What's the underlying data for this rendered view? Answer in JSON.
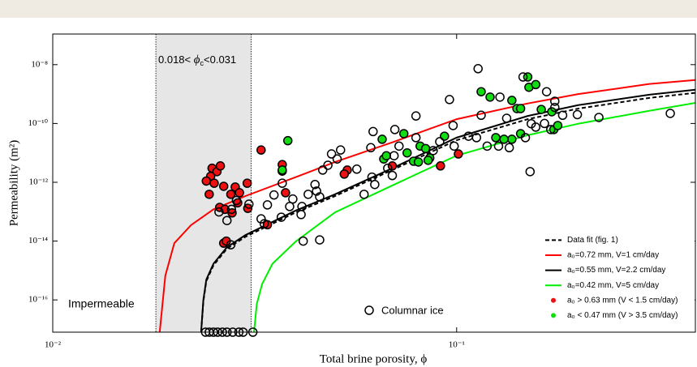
{
  "chart_data": {
    "type": "line",
    "xlabel": "Total brine porosity, ϕ",
    "ylabel": "Permeability (m²)",
    "xscale": "log",
    "yscale": "log",
    "xlim": [
      0.01,
      0.39
    ],
    "ylim": [
      8e-18,
      1.1e-07
    ],
    "xticks": [
      {
        "value": 0.01,
        "label": "10⁻²"
      },
      {
        "value": 0.1,
        "label": "10⁻¹"
      }
    ],
    "yticks": [
      {
        "value": 1e-08,
        "label": "10⁻⁸"
      },
      {
        "value": 1e-10,
        "label": "10⁻¹⁰"
      },
      {
        "value": 1e-12,
        "label": "10⁻¹²"
      },
      {
        "value": 1e-14,
        "label": "10⁻¹⁴"
      },
      {
        "value": 1e-16,
        "label": "10⁻¹⁶"
      }
    ],
    "shade": {
      "xlim": [
        0.018,
        0.031
      ],
      "color": "#e6e6e6"
    },
    "annotations": {
      "critical": [
        "0.018< ",
        "ϕ",
        "c",
        "<0.031"
      ],
      "impermeable": "Impermeable"
    },
    "legend_loc": "lower right",
    "series": [
      {
        "name": "Data fit (fig. 1)",
        "kind": "line",
        "color": "#000000",
        "dash": true,
        "x": [
          0.0233,
          0.0236,
          0.024,
          0.025,
          0.027,
          0.03,
          0.04,
          0.05,
          0.07,
          0.1,
          0.15,
          0.2,
          0.3,
          0.39
        ],
        "values": [
          8e-18,
          8.8e-17,
          4.3e-16,
          1.5e-15,
          5.5e-15,
          1.4e-14,
          9.5e-14,
          3.4e-13,
          2.8e-12,
          2.7e-11,
          1.4e-10,
          3.2e-10,
          7.4e-10,
          1.1e-09
        ]
      },
      {
        "name": "a₀=0.72 mm, V=1 cm/day",
        "kind": "line",
        "color": "#ff0000",
        "dash": false,
        "x": [
          0.0184,
          0.019,
          0.02,
          0.022,
          0.025,
          0.03,
          0.04,
          0.05,
          0.07,
          0.1,
          0.15,
          0.2,
          0.3,
          0.39
        ],
        "values": [
          8e-18,
          6.7e-16,
          8.5e-15,
          3.5e-14,
          1.2e-13,
          3.4e-13,
          1.5e-12,
          4.9e-12,
          2.4e-11,
          1.4e-10,
          4.8e-10,
          1e-09,
          2.2e-09,
          3e-09
        ]
      },
      {
        "name": "a₀=0.55 mm, V=2.2 cm/day",
        "kind": "line",
        "color": "#000000",
        "dash": false,
        "x": [
          0.0233,
          0.0236,
          0.024,
          0.025,
          0.027,
          0.03,
          0.04,
          0.05,
          0.07,
          0.1,
          0.15,
          0.2,
          0.3,
          0.39
        ],
        "values": [
          8e-18,
          1e-16,
          4.9e-16,
          1.7e-15,
          6.2e-15,
          1.6e-14,
          1.1e-13,
          3.9e-13,
          3.2e-12,
          3.3e-11,
          1.8e-10,
          4.2e-10,
          9.5e-10,
          1.4e-09
        ]
      },
      {
        "name": "a₀=0.42 mm, V=5 cm/day",
        "kind": "line",
        "color": "#00ee00",
        "dash": false,
        "x": [
          0.0315,
          0.032,
          0.033,
          0.035,
          0.04,
          0.05,
          0.07,
          0.1,
          0.15,
          0.2,
          0.3,
          0.39
        ],
        "values": [
          8e-18,
          7.3e-17,
          3.5e-16,
          1.7e-15,
          9.8e-15,
          9.5e-14,
          8.3e-13,
          8.1e-12,
          4e-11,
          9.8e-11,
          2.7e-10,
          5e-10
        ]
      },
      {
        "name": "a₀ > 0.63 mm (V < 1.5 cm/day)",
        "kind": "scatter",
        "color": "#ee1111",
        "edgecolor": "#000000",
        "x": [
          0.0328,
          0.0248,
          0.0255,
          0.026,
          0.0246,
          0.024,
          0.0251,
          0.0265,
          0.0303,
          0.0283,
          0.029,
          0.0276,
          0.0244,
          0.0287,
          0.0304,
          0.0259,
          0.0267,
          0.0278,
          0.0265,
          0.0269,
          0.037,
          0.037,
          0.0377,
          0.034,
          0.0536,
          0.0527,
          0.0693,
          0.0912,
          0.101
        ],
        "values": [
          1.25e-11,
          3e-12,
          2.3e-12,
          3.6e-12,
          1.6e-12,
          1.1e-12,
          9.3e-13,
          7.3e-13,
          9.3e-13,
          6.9e-13,
          4.4e-13,
          3.9e-13,
          3.9e-13,
          2e-13,
          1.3e-13,
          1.4e-13,
          1.2e-13,
          9.1e-14,
          8.5e-15,
          1e-14,
          4e-12,
          2.4e-12,
          4.4e-13,
          3.6e-14,
          2.6e-12,
          1.9e-12,
          3.6e-12,
          3.6e-12,
          9.2e-12
        ]
      },
      {
        "name": "a₀ < 0.47 mm (V > 3.5 cm/day)",
        "kind": "scatter",
        "color": "#11dd11",
        "edgecolor": "#000000",
        "x": [
          0.0382,
          0.037,
          0.0654,
          0.074,
          0.0812,
          0.0838,
          0.0858,
          0.0754,
          0.0782,
          0.0804,
          0.085,
          0.0933,
          0.115,
          0.121,
          0.137,
          0.141,
          0.144,
          0.15,
          0.151,
          0.157,
          0.162,
          0.172,
          0.137,
          0.125,
          0.131,
          0.144,
          0.174,
          0.178,
          0.066,
          0.067
        ],
        "values": [
          2.6e-11,
          2.6e-12,
          2.9e-11,
          4.5e-11,
          1.7e-11,
          1.4e-11,
          6.7e-12,
          1e-11,
          5.2e-12,
          4.9e-12,
          5.6e-12,
          3.7e-11,
          1.2e-09,
          7.9e-10,
          6.1e-10,
          3.2e-10,
          3.2e-10,
          3.8e-09,
          1.7e-09,
          2.1e-09,
          3e-10,
          2.5e-10,
          2.9e-11,
          3.3e-11,
          2.9e-11,
          4.5e-11,
          6.2e-11,
          8.5e-11,
          6.2e-12,
          8e-12
        ]
      },
      {
        "name": "Columnar ice",
        "kind": "scatter",
        "color": "none",
        "edgecolor": "#000000",
        "legend_separate": true,
        "x": [
          0.0239,
          0.0244,
          0.025,
          0.0256,
          0.0263,
          0.027,
          0.0279,
          0.0289,
          0.0296,
          0.0313,
          0.113,
          0.146,
          0.167,
          0.175,
          0.175,
          0.128,
          0.096,
          0.115,
          0.133,
          0.153,
          0.157,
          0.165,
          0.171,
          0.183,
          0.199,
          0.225,
          0.338,
          0.098,
          0.0793,
          0.0703,
          0.0793,
          0.072,
          0.0908,
          0.0875,
          0.0986,
          0.107,
          0.112,
          0.119,
          0.127,
          0.135,
          0.148,
          0.152,
          0.0621,
          0.0613,
          0.07,
          0.0675,
          0.0693,
          0.0617,
          0.0627,
          0.059,
          0.0566,
          0.0516,
          0.0506,
          0.049,
          0.048,
          0.0466,
          0.045,
          0.0458,
          0.0446,
          0.0429,
          0.0414,
          0.0412,
          0.0393,
          0.0386,
          0.0368,
          0.037,
          0.0353,
          0.034,
          0.0334,
          0.0328,
          0.0306,
          0.0285,
          0.0277,
          0.027,
          0.0276,
          0.0258,
          0.0417,
          0.0458
        ],
        "values": [
          8e-18,
          8e-18,
          8e-18,
          8e-18,
          8e-18,
          8e-18,
          8e-18,
          8e-18,
          8e-18,
          8e-18,
          7.3e-09,
          3.8e-09,
          1.2e-09,
          5.7e-10,
          3.5e-10,
          7.9e-10,
          6.5e-10,
          1.9e-10,
          1.5e-10,
          9.8e-11,
          7.5e-11,
          1e-10,
          6.2e-11,
          1.9e-10,
          2e-10,
          1.6e-10,
          2.2e-10,
          8.5e-11,
          1.8e-10,
          6.2e-11,
          3.3e-11,
          1.7e-11,
          2.4e-11,
          1.2e-11,
          1.7e-11,
          3.7e-11,
          3.3e-11,
          1.7e-11,
          1.7e-11,
          1.5e-11,
          3.3e-11,
          2.3e-12,
          5.3e-11,
          1.5e-11,
          8e-12,
          3e-12,
          1.7e-12,
          1.5e-12,
          8.4e-13,
          3.9e-13,
          2.8e-12,
          1.25e-11,
          6.2e-12,
          9.2e-12,
          3.8e-12,
          2.6e-12,
          5e-13,
          3.2e-13,
          8.4e-13,
          3.9e-13,
          1.5e-13,
          8e-14,
          2.7e-13,
          1.5e-13,
          6.5e-14,
          9.3e-13,
          3.7e-13,
          1.7e-13,
          3.9e-14,
          5.7e-14,
          1.8e-13,
          2.4e-13,
          1.2e-13,
          5e-14,
          7.5e-15,
          9.8e-14,
          1e-14,
          1.1e-14
        ]
      }
    ]
  }
}
